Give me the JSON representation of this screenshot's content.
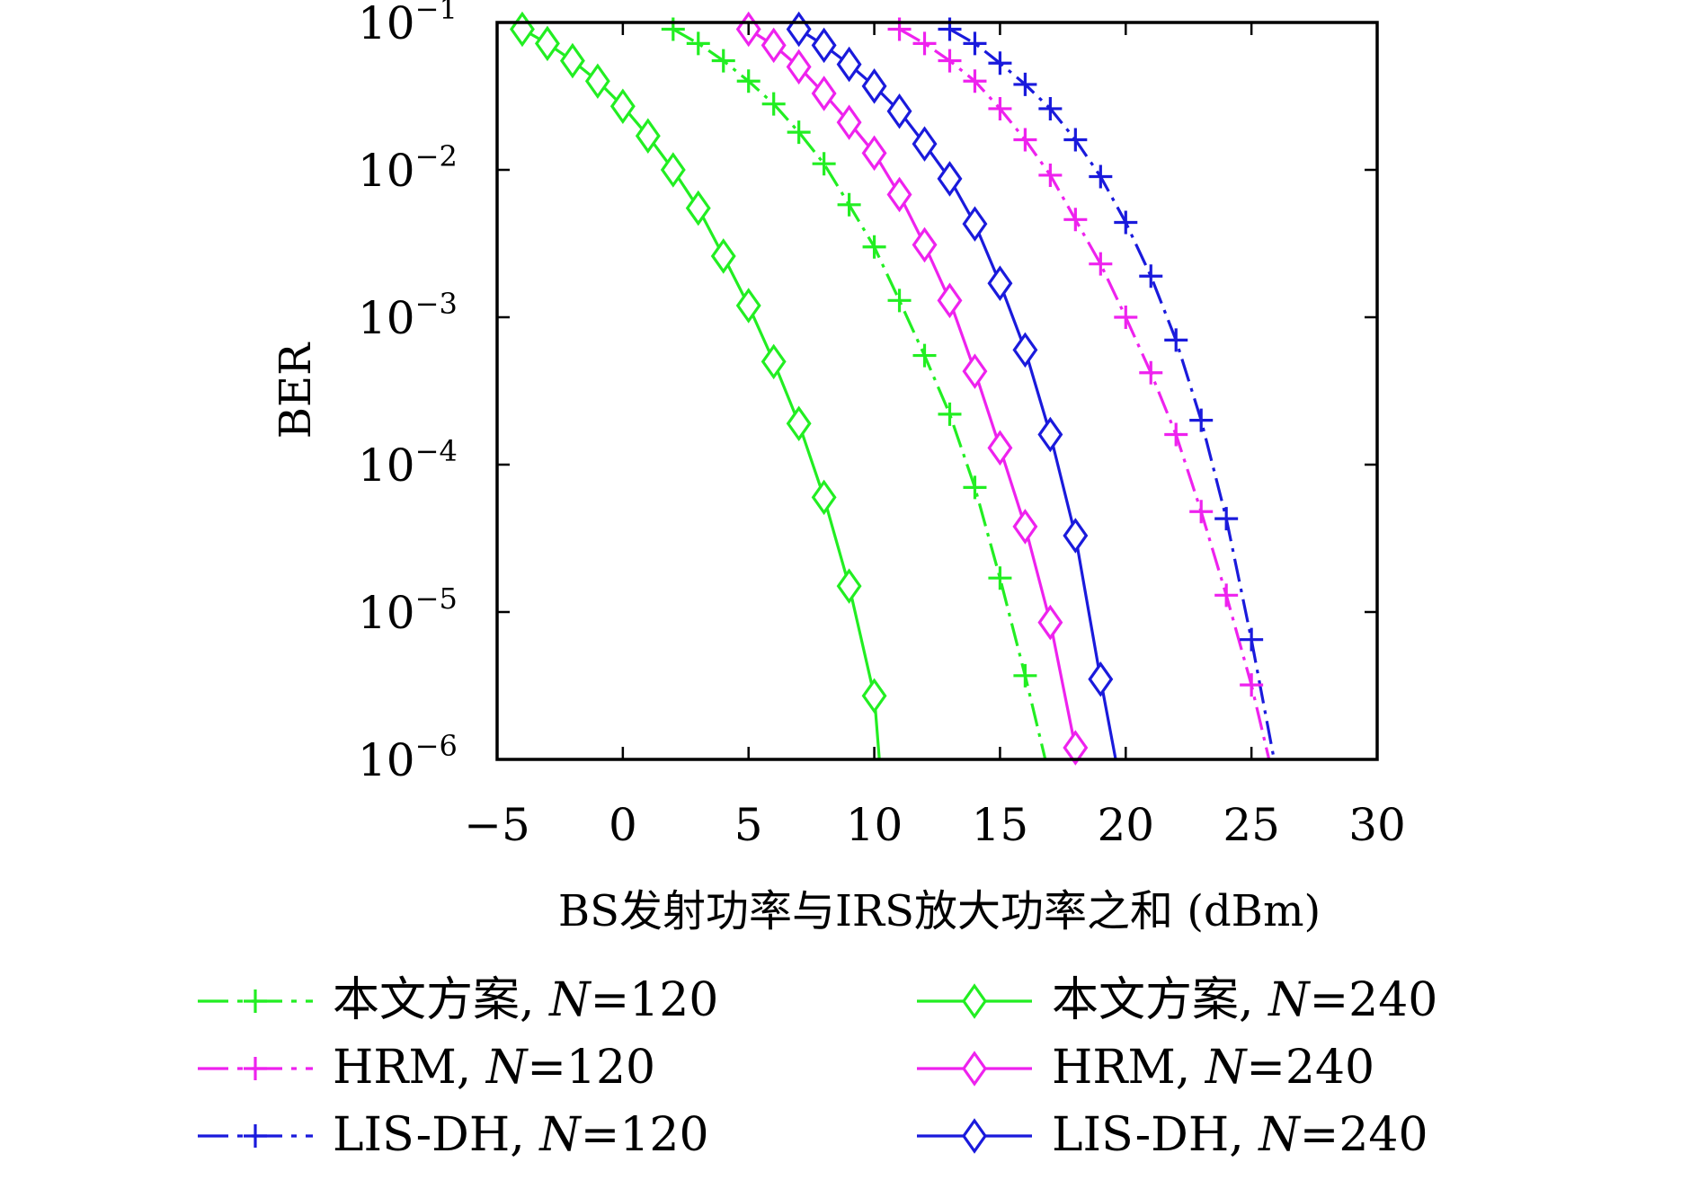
{
  "chart_data": {
    "type": "line",
    "title": "",
    "xlabel": "BS发射功率与IRS放大功率之和 (dBm)",
    "ylabel": "BER",
    "xlim": [
      -5,
      30
    ],
    "ylim": [
      1e-06,
      0.1
    ],
    "yscale": "log",
    "grid": false,
    "legend_position": "bottom (below plot, two columns)",
    "x_ticks": [
      "−5",
      "0",
      "5",
      "10",
      "15",
      "20",
      "25",
      "30"
    ],
    "x_tick_values": [
      -5,
      0,
      5,
      10,
      15,
      20,
      25,
      30
    ],
    "y_ticks": [
      {
        "base": "10",
        "exp": "−1",
        "value": 0.1
      },
      {
        "base": "10",
        "exp": "−2",
        "value": 0.01
      },
      {
        "base": "10",
        "exp": "−3",
        "value": 0.001
      },
      {
        "base": "10",
        "exp": "−4",
        "value": 0.0001
      },
      {
        "base": "10",
        "exp": "−5",
        "value": 1e-05
      },
      {
        "base": "10",
        "exp": "−6",
        "value": 1e-06
      }
    ],
    "series": [
      {
        "name": "本文方案, N=120",
        "label_text": "本文方案, ",
        "label_var": "N",
        "label_rest": "=120",
        "color": "#22ee22",
        "marker": "plus",
        "dash": "dashdot",
        "x": [
          2,
          3,
          4,
          5,
          6,
          7,
          8,
          9,
          10,
          11,
          12,
          13,
          14,
          15,
          16,
          16.8
        ],
        "y": [
          0.09,
          0.072,
          0.055,
          0.04,
          0.028,
          0.018,
          0.011,
          0.0058,
          0.003,
          0.0013,
          0.00055,
          0.00022,
          7e-05,
          1.7e-05,
          3.7e-06,
          1e-06
        ]
      },
      {
        "name": "本文方案, N=240",
        "label_text": "本文方案, ",
        "label_var": "N",
        "label_rest": "=240",
        "color": "#22ee22",
        "marker": "diamond",
        "dash": "solid",
        "x": [
          -4,
          -3,
          -2,
          -1,
          0,
          1,
          2,
          3,
          4,
          5,
          6,
          7,
          8,
          9,
          10,
          10.2
        ],
        "y": [
          0.09,
          0.072,
          0.055,
          0.04,
          0.027,
          0.017,
          0.01,
          0.0055,
          0.0026,
          0.0012,
          0.0005,
          0.00019,
          6e-05,
          1.5e-05,
          2.7e-06,
          1e-06
        ]
      },
      {
        "name": "HRM, N=120",
        "label_text": "HRM, ",
        "label_var": "N",
        "label_rest": "=120",
        "color": "#ee22ee",
        "marker": "plus",
        "dash": "dashdot",
        "x": [
          11,
          12,
          13,
          14,
          15,
          16,
          17,
          18,
          19,
          20,
          21,
          22,
          23,
          24,
          25,
          25.7
        ],
        "y": [
          0.09,
          0.072,
          0.055,
          0.04,
          0.026,
          0.016,
          0.0092,
          0.0046,
          0.0023,
          0.001,
          0.00042,
          0.00016,
          4.8e-05,
          1.3e-05,
          3.2e-06,
          1e-06
        ]
      },
      {
        "name": "HRM, N=240",
        "label_text": "HRM, ",
        "label_var": "N",
        "label_rest": "=240",
        "color": "#ee22ee",
        "marker": "diamond",
        "dash": "solid",
        "x": [
          5,
          6,
          7,
          8,
          9,
          10,
          11,
          12,
          13,
          14,
          15,
          16,
          17,
          18
        ],
        "y": [
          0.09,
          0.07,
          0.05,
          0.033,
          0.021,
          0.013,
          0.0068,
          0.0031,
          0.0013,
          0.00043,
          0.00013,
          3.8e-05,
          8.5e-06,
          1.2e-06
        ]
      },
      {
        "name": "LIS-DH, N=120",
        "label_text": "LIS-DH, ",
        "label_var": "N",
        "label_rest": "=120",
        "color": "#1a1adc",
        "marker": "plus",
        "dash": "dashdot",
        "x": [
          13,
          14,
          15,
          16,
          17,
          18,
          19,
          20,
          21,
          22,
          23,
          24,
          25,
          25.9
        ],
        "y": [
          0.09,
          0.072,
          0.053,
          0.038,
          0.026,
          0.016,
          0.009,
          0.0044,
          0.0019,
          0.0007,
          0.0002,
          4.3e-05,
          6.5e-06,
          1e-06
        ]
      },
      {
        "name": "LIS-DH, N=240",
        "label_text": "LIS-DH, ",
        "label_var": "N",
        "label_rest": "=240",
        "color": "#1a1adc",
        "marker": "diamond",
        "dash": "solid",
        "x": [
          7,
          8,
          9,
          10,
          11,
          12,
          13,
          14,
          15,
          16,
          17,
          18,
          19,
          19.6
        ],
        "y": [
          0.09,
          0.07,
          0.052,
          0.037,
          0.025,
          0.015,
          0.0087,
          0.0043,
          0.0017,
          0.0006,
          0.00016,
          3.3e-05,
          3.5e-06,
          1e-06
        ]
      }
    ]
  }
}
